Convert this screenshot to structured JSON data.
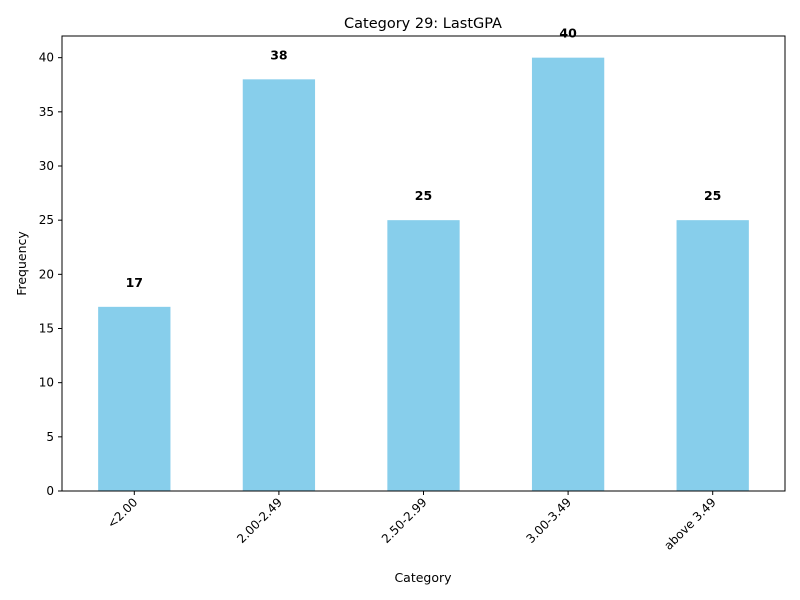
{
  "chart_data": {
    "type": "bar",
    "title": "Category 29: LastGPA",
    "xlabel": "Category",
    "ylabel": "Frequency",
    "categories": [
      "<2.00",
      "2.00-2.49",
      "2.50-2.99",
      "3.00-3.49",
      "above 3.49"
    ],
    "values": [
      17,
      38,
      25,
      40,
      25
    ],
    "ylim": [
      0,
      42
    ],
    "yticks": [
      0,
      5,
      10,
      15,
      20,
      25,
      30,
      35,
      40
    ],
    "bar_color": "#87CEEB",
    "grid": false,
    "legend": "none",
    "xtick_rotation_deg": 45
  }
}
